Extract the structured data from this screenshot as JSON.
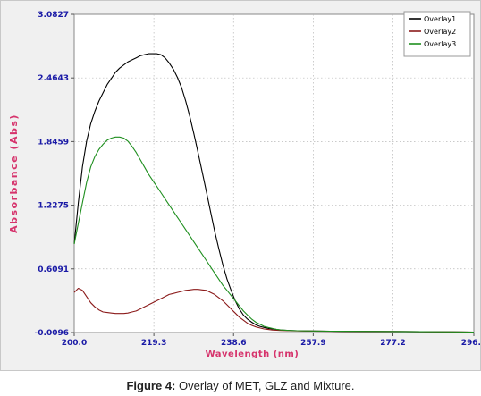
{
  "caption": {
    "label": "Figure 4:",
    "text": " Overlay of MET, GLZ and Mixture."
  },
  "chart_data": {
    "type": "line",
    "xlabel": "Wavelength (nm)",
    "ylabel": "Absorbance (Abs)",
    "xlim": [
      200.0,
      296.8
    ],
    "ylim": [
      -0.0096,
      3.0827
    ],
    "x_ticks": [
      "200.0",
      "219.3",
      "238.6",
      "257.9",
      "277.2",
      "296.8"
    ],
    "y_ticks": [
      "-0.0096",
      "0.6091",
      "1.2275",
      "1.8459",
      "2.4643",
      "3.0827"
    ],
    "grid": true,
    "legend_position": "top-right",
    "series": [
      {
        "name": "Overlay1",
        "color": "#000000",
        "x": [
          200,
          201,
          202,
          203,
          204,
          205,
          206,
          207,
          208,
          209,
          210,
          211,
          212,
          213,
          214,
          215,
          216,
          217,
          218,
          219,
          220,
          221,
          222,
          223,
          224,
          225,
          226,
          227,
          228,
          229,
          230,
          231,
          232,
          233,
          234,
          235,
          236,
          237,
          238,
          239,
          240,
          241,
          242,
          243,
          244,
          245,
          246,
          247,
          248,
          249,
          250,
          252,
          254,
          256,
          258,
          262,
          270,
          280,
          296.8
        ],
        "y": [
          0.85,
          1.25,
          1.6,
          1.85,
          2.02,
          2.14,
          2.24,
          2.32,
          2.4,
          2.46,
          2.52,
          2.56,
          2.59,
          2.62,
          2.64,
          2.66,
          2.68,
          2.69,
          2.7,
          2.7,
          2.7,
          2.69,
          2.66,
          2.61,
          2.55,
          2.47,
          2.37,
          2.24,
          2.09,
          1.92,
          1.74,
          1.55,
          1.36,
          1.17,
          0.98,
          0.81,
          0.65,
          0.51,
          0.4,
          0.3,
          0.22,
          0.16,
          0.12,
          0.09,
          0.065,
          0.05,
          0.04,
          0.03,
          0.025,
          0.02,
          0.015,
          0.01,
          0.008,
          0.006,
          0.005,
          0.003,
          0.002,
          0.0,
          -0.005
        ]
      },
      {
        "name": "Overlay2",
        "color": "#8b1a1a",
        "x": [
          200,
          201,
          202,
          203,
          204,
          205,
          206,
          207,
          208,
          209,
          210,
          211,
          212,
          213,
          214,
          215,
          216,
          217,
          218,
          219,
          220,
          221,
          222,
          223,
          224,
          225,
          226,
          227,
          228,
          229,
          230,
          231,
          232,
          233,
          234,
          235,
          236,
          237,
          238,
          239,
          240,
          241,
          242,
          243,
          244,
          245,
          246,
          247,
          248,
          250,
          254,
          258,
          265,
          280,
          296.8
        ],
        "y": [
          0.38,
          0.42,
          0.4,
          0.34,
          0.28,
          0.24,
          0.21,
          0.19,
          0.185,
          0.18,
          0.175,
          0.175,
          0.175,
          0.18,
          0.19,
          0.2,
          0.22,
          0.24,
          0.26,
          0.28,
          0.3,
          0.32,
          0.34,
          0.36,
          0.37,
          0.38,
          0.39,
          0.4,
          0.405,
          0.41,
          0.41,
          0.405,
          0.4,
          0.38,
          0.36,
          0.33,
          0.3,
          0.26,
          0.22,
          0.18,
          0.14,
          0.11,
          0.08,
          0.06,
          0.045,
          0.035,
          0.025,
          0.02,
          0.015,
          0.01,
          0.006,
          0.004,
          0.002,
          0.0,
          -0.005
        ]
      },
      {
        "name": "Overlay3",
        "color": "#1f8f1f",
        "x": [
          200,
          201,
          202,
          203,
          204,
          205,
          206,
          207,
          208,
          209,
          210,
          211,
          212,
          213,
          214,
          215,
          216,
          217,
          218,
          219,
          220,
          221,
          222,
          223,
          224,
          225,
          226,
          227,
          228,
          229,
          230,
          231,
          232,
          233,
          234,
          235,
          236,
          237,
          238,
          239,
          240,
          241,
          242,
          243,
          244,
          245,
          246,
          247,
          248,
          249,
          250,
          252,
          254,
          256,
          258,
          262,
          270,
          280,
          296.8
        ],
        "y": [
          0.85,
          1.05,
          1.25,
          1.45,
          1.6,
          1.7,
          1.77,
          1.82,
          1.86,
          1.88,
          1.89,
          1.89,
          1.88,
          1.85,
          1.8,
          1.74,
          1.67,
          1.6,
          1.53,
          1.47,
          1.41,
          1.35,
          1.29,
          1.23,
          1.17,
          1.11,
          1.05,
          0.99,
          0.93,
          0.87,
          0.81,
          0.75,
          0.69,
          0.63,
          0.57,
          0.51,
          0.45,
          0.4,
          0.35,
          0.3,
          0.25,
          0.2,
          0.16,
          0.12,
          0.09,
          0.07,
          0.05,
          0.04,
          0.03,
          0.022,
          0.016,
          0.01,
          0.008,
          0.006,
          0.005,
          0.003,
          0.002,
          0.0,
          -0.005
        ]
      }
    ]
  }
}
